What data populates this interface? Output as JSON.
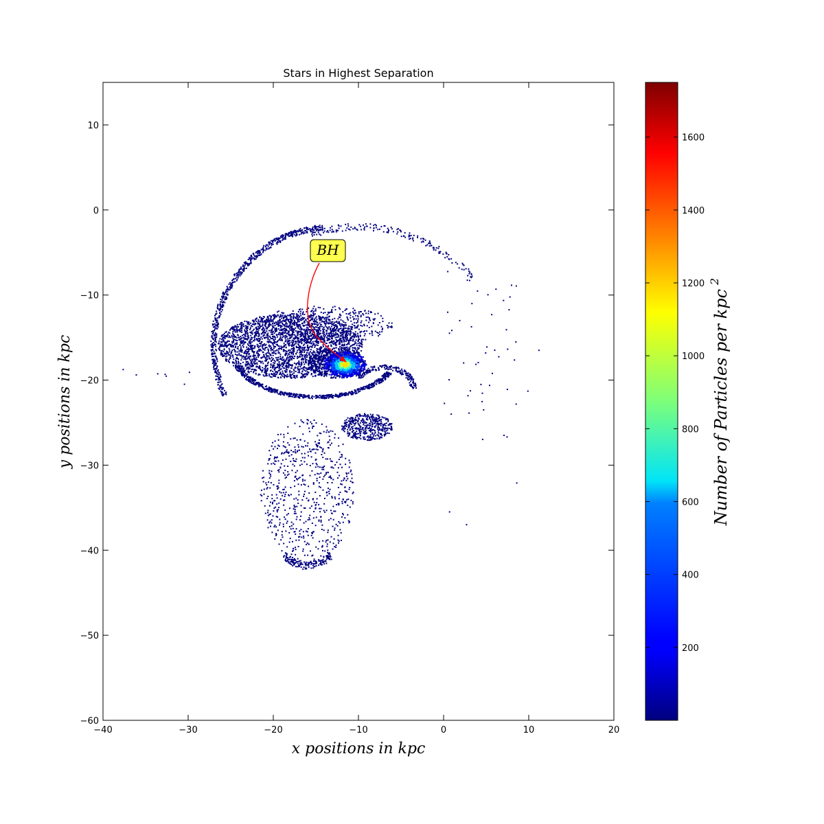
{
  "chart_data": {
    "type": "scatter",
    "title": "Stars in Highest Separation",
    "xlabel": "x positions in kpc",
    "ylabel": "y positions in kpc",
    "xlim": [
      -40,
      20
    ],
    "ylim": [
      -60,
      15
    ],
    "x_ticks": [
      -40,
      -30,
      -20,
      -10,
      0,
      10,
      20
    ],
    "y_ticks": [
      -60,
      -50,
      -40,
      -30,
      -20,
      -10,
      0,
      10
    ],
    "x_tick_labels": [
      "−40",
      "−30",
      "−20",
      "−10",
      "0",
      "10",
      "20"
    ],
    "y_tick_labels": [
      "−60",
      "−50",
      "−40",
      "−30",
      "−20",
      "−10",
      "0",
      "10"
    ],
    "grid": false,
    "colormap": "jet",
    "colorbar": {
      "label": "Number of Particles per kpc",
      "label_superscript": "2",
      "range": [
        0,
        1750
      ],
      "ticks": [
        200,
        400,
        600,
        800,
        1000,
        1200,
        1400,
        1600
      ],
      "tick_labels": [
        "200",
        "400",
        "600",
        "800",
        "1000",
        "1200",
        "1400",
        "1600"
      ]
    },
    "annotation": {
      "text": "BH",
      "target": [
        -11.5,
        -18.2
      ],
      "label_position": [
        -13.5,
        -4.8
      ],
      "box_color": "#ffff4d",
      "arrow_color": "#ff0000"
    },
    "density_peak": {
      "x": -11.6,
      "y": -18.2,
      "value": 1150
    },
    "structures": [
      {
        "name": "outer arc",
        "kind": "arc",
        "cx": -13,
        "cy": -16,
        "rx": 14,
        "ry": 14,
        "a0": 95,
        "a1": 205,
        "width": 0.35,
        "n": 620
      },
      {
        "name": "outer arc top",
        "kind": "arc",
        "cx": -10,
        "cy": -20,
        "rx": 18,
        "ry": 18,
        "a0": 42,
        "a1": 108,
        "width": 0.4,
        "n": 170
      },
      {
        "name": "sparse right trail",
        "kind": "box",
        "x0": 0,
        "x1": 9,
        "y0": -28,
        "y1": -7,
        "n": 45
      },
      {
        "name": "main disk",
        "kind": "ellipse",
        "cx": -18,
        "cy": -16,
        "rx": 8.5,
        "ry": 3.8,
        "n": 2600
      },
      {
        "name": "disk upper band",
        "kind": "ellipse",
        "cx": -14,
        "cy": -13.5,
        "rx": 8,
        "ry": 2.2,
        "n": 500
      },
      {
        "name": "lower ring",
        "kind": "arc",
        "cx": -15,
        "cy": -17,
        "rx": 9.5,
        "ry": 5,
        "a0": 195,
        "a1": 335,
        "width": 0.4,
        "n": 650
      },
      {
        "name": "inner core disk",
        "kind": "ellipse",
        "cx": -12.5,
        "cy": -18,
        "rx": 3.5,
        "ry": 1.8,
        "n": 550
      },
      {
        "name": "right tail",
        "kind": "arc",
        "cx": -7,
        "cy": -21,
        "rx": 3.5,
        "ry": 2.5,
        "a0": 0,
        "a1": 150,
        "width": 0.4,
        "n": 200
      },
      {
        "name": "southern clump",
        "kind": "ellipse",
        "cx": -9,
        "cy": -25.5,
        "rx": 3,
        "ry": 1.6,
        "n": 420
      },
      {
        "name": "southern plume",
        "kind": "ellipse",
        "cx": -16,
        "cy": -33,
        "rx": 5.5,
        "ry": 8.5,
        "n": 650
      },
      {
        "name": "southern edge",
        "kind": "arc",
        "cx": -16,
        "cy": -33,
        "rx": 5.5,
        "ry": 8.8,
        "a0": 240,
        "a1": 300,
        "width": 0.3,
        "n": 160
      },
      {
        "name": "far left strays",
        "kind": "box",
        "x0": -38,
        "x1": -29,
        "y0": -20.5,
        "y1": -18,
        "n": 7
      }
    ],
    "outlier_points": [
      [
        2.7,
        -37.0
      ],
      [
        0.7,
        -35.5
      ],
      [
        8.6,
        -32.1
      ],
      [
        7.1,
        -26.5
      ],
      [
        11.2,
        -16.5
      ],
      [
        9.9,
        -21.3
      ]
    ]
  }
}
